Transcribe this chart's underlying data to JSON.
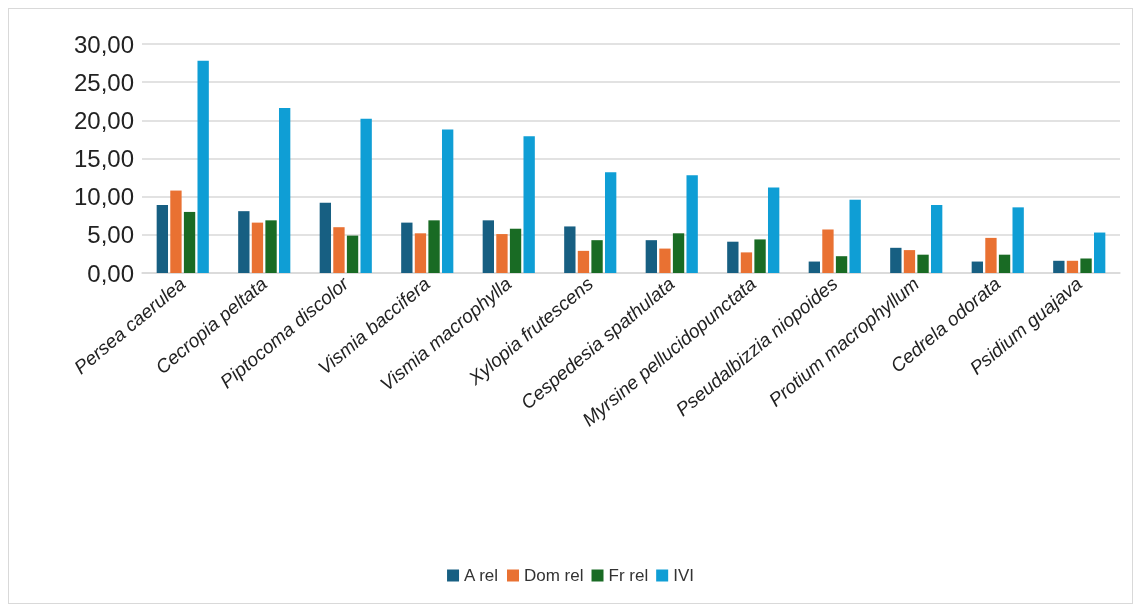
{
  "chart_data": {
    "type": "bar",
    "categories": [
      "Persea caerulea",
      "Cecropia peltata",
      "Piptocoma discolor",
      "Vismia baccifera",
      "Vismia macrophylla",
      "Xylopia frutescens",
      "Cespedesia spathulata",
      "Myrsine pellucidopunctata",
      "Pseudalbizzia niopoides",
      "Protium macrophyllum",
      "Cedrela odorata",
      "Psidium guajava"
    ],
    "series": [
      {
        "name": "A rel",
        "color": "#175f82",
        "values": [
          8.9,
          8.1,
          9.2,
          6.6,
          6.9,
          6.1,
          4.3,
          4.1,
          1.5,
          3.3,
          1.5,
          1.6
        ]
      },
      {
        "name": "Dom rel",
        "color": "#e97132",
        "values": [
          10.8,
          6.6,
          6.0,
          5.2,
          5.1,
          2.9,
          3.2,
          2.7,
          5.7,
          3.0,
          4.6,
          1.6
        ]
      },
      {
        "name": "Fr rel",
        "color": "#196b24",
        "values": [
          8.0,
          6.9,
          4.9,
          6.9,
          5.8,
          4.3,
          5.2,
          4.4,
          2.2,
          2.4,
          2.4,
          1.9
        ]
      },
      {
        "name": "IVI",
        "color": "#0f9ed5",
        "values": [
          27.8,
          21.6,
          20.2,
          18.8,
          17.9,
          13.2,
          12.8,
          11.2,
          9.6,
          8.9,
          8.6,
          5.3
        ]
      }
    ],
    "ylim": [
      0,
      30
    ],
    "yticks": [
      {
        "value": 0,
        "label": "0,00"
      },
      {
        "value": 5,
        "label": "5,00"
      },
      {
        "value": 10,
        "label": "10,00"
      },
      {
        "value": 15,
        "label": "15,00"
      },
      {
        "value": 20,
        "label": "20,00"
      },
      {
        "value": 25,
        "label": "25,00"
      },
      {
        "value": 30,
        "label": "30,00"
      }
    ],
    "grid": "y",
    "legend": "bottom"
  }
}
